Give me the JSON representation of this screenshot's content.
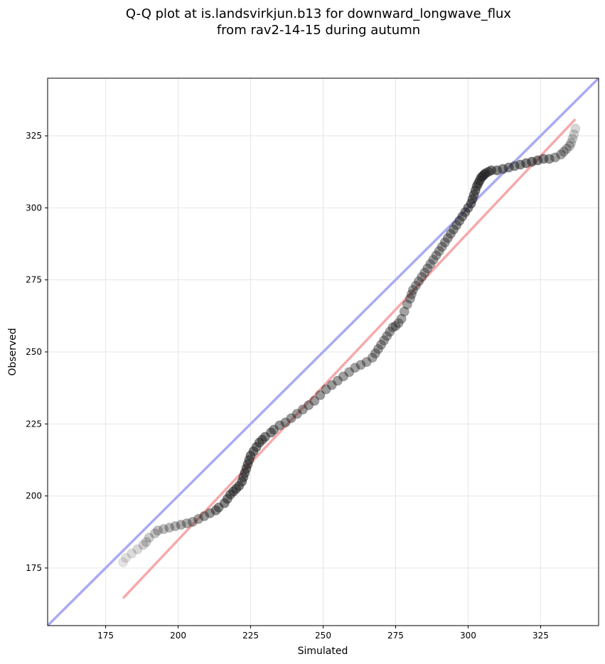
{
  "chart_data": {
    "type": "scatter",
    "title": [
      "Q-Q plot at is.landsvirkjun.b13 for downward_longwave_flux",
      "from rav2-14-15 during autumn"
    ],
    "xlabel": "Simulated",
    "ylabel": "Observed",
    "xlim": [
      155,
      345
    ],
    "ylim": [
      155,
      345
    ],
    "xticks": [
      175,
      200,
      225,
      250,
      275,
      300,
      325
    ],
    "yticks": [
      175,
      200,
      225,
      250,
      275,
      300,
      325
    ],
    "grid": true,
    "colors": {
      "identity_line": "#aaaaf4",
      "fit_line": "#f6aaaa",
      "points": "#222222"
    },
    "identity_line": {
      "name": "1:1",
      "x": [
        155,
        345
      ],
      "y": [
        155,
        345
      ]
    },
    "fit_line": {
      "name": "fit",
      "x": [
        181,
        337
      ],
      "y": [
        164.5,
        330.8
      ]
    },
    "series": [
      {
        "name": "quantiles",
        "x": [
          181,
          182,
          184,
          186,
          188,
          189,
          190,
          192,
          193,
          195,
          197,
          199,
          201,
          203,
          205,
          207,
          209,
          211,
          213,
          214,
          216,
          217,
          218,
          219,
          220,
          221,
          222,
          222.5,
          223,
          223.5,
          224,
          224.5,
          225,
          226,
          227,
          228,
          229,
          230,
          232,
          233,
          235,
          237,
          239,
          241,
          243,
          245,
          247,
          249,
          251,
          253,
          255,
          257,
          259,
          261,
          263,
          265,
          267,
          268,
          269,
          270,
          271,
          272,
          273,
          274,
          275,
          276,
          277,
          278,
          279,
          280,
          280.5,
          281,
          282,
          283,
          284,
          285,
          286,
          287,
          288,
          289,
          290,
          291,
          292,
          293,
          294,
          295,
          296,
          297,
          298,
          299,
          300,
          301,
          301.5,
          302,
          302.5,
          303,
          303.5,
          304,
          304.5,
          305,
          305.5,
          306,
          307,
          308,
          310,
          312,
          314,
          316,
          318,
          320,
          322,
          324,
          326,
          328,
          330,
          332,
          333,
          334,
          335,
          335.5,
          336,
          336.5,
          337
        ],
        "y": [
          177,
          178.5,
          180,
          181.5,
          183,
          184,
          185.5,
          187,
          188,
          188.5,
          189,
          189.5,
          190,
          190.5,
          191,
          192,
          193,
          194,
          195,
          196,
          197.5,
          199,
          200.5,
          201.5,
          202.5,
          203.5,
          205,
          206.5,
          208,
          209.5,
          211,
          212.5,
          214,
          215.5,
          217,
          218.5,
          219.5,
          220.5,
          222,
          223,
          224.5,
          225.5,
          227,
          228.5,
          230,
          231.5,
          233,
          235,
          237,
          238.5,
          240,
          241.5,
          243,
          244.5,
          245.5,
          246.5,
          248,
          249.5,
          251,
          252.5,
          254,
          255.5,
          257,
          258.5,
          259,
          260,
          261.5,
          264,
          266.5,
          268.5,
          270,
          271.5,
          273,
          274.5,
          276,
          277.5,
          279,
          280.5,
          282,
          283.5,
          285,
          286.5,
          288,
          289.5,
          291,
          292.5,
          294,
          295.5,
          297,
          298.5,
          300,
          301.5,
          303,
          304.5,
          306,
          307.5,
          308.5,
          309.5,
          310.5,
          311,
          311.5,
          312,
          312.5,
          313,
          313,
          313.5,
          314,
          314.5,
          315,
          315.5,
          316,
          316.5,
          317,
          317,
          317.5,
          318.5,
          319.5,
          320.5,
          321.5,
          322.5,
          324,
          325.5,
          327.5
        ],
        "alpha": [
          0.12,
          0.14,
          0.16,
          0.18,
          0.2,
          0.22,
          0.24,
          0.26,
          0.28,
          0.3,
          0.32,
          0.34,
          0.36,
          0.38,
          0.4,
          0.42,
          0.45,
          0.48,
          0.5,
          0.52,
          0.54,
          0.55,
          0.56,
          0.57,
          0.58,
          0.58,
          0.58,
          0.58,
          0.58,
          0.58,
          0.58,
          0.58,
          0.58,
          0.58,
          0.57,
          0.56,
          0.55,
          0.54,
          0.52,
          0.5,
          0.48,
          0.47,
          0.46,
          0.45,
          0.45,
          0.45,
          0.45,
          0.45,
          0.45,
          0.45,
          0.44,
          0.43,
          0.42,
          0.42,
          0.42,
          0.42,
          0.42,
          0.42,
          0.42,
          0.42,
          0.42,
          0.42,
          0.42,
          0.42,
          0.42,
          0.42,
          0.42,
          0.42,
          0.42,
          0.42,
          0.42,
          0.42,
          0.42,
          0.42,
          0.42,
          0.42,
          0.42,
          0.42,
          0.42,
          0.42,
          0.42,
          0.43,
          0.44,
          0.45,
          0.46,
          0.47,
          0.48,
          0.5,
          0.52,
          0.54,
          0.56,
          0.58,
          0.58,
          0.58,
          0.58,
          0.58,
          0.58,
          0.58,
          0.58,
          0.58,
          0.58,
          0.58,
          0.58,
          0.58,
          0.56,
          0.54,
          0.52,
          0.52,
          0.54,
          0.56,
          0.58,
          0.56,
          0.52,
          0.48,
          0.44,
          0.4,
          0.35,
          0.32,
          0.28,
          0.25,
          0.22,
          0.2,
          0.18,
          0.15
        ]
      }
    ]
  }
}
